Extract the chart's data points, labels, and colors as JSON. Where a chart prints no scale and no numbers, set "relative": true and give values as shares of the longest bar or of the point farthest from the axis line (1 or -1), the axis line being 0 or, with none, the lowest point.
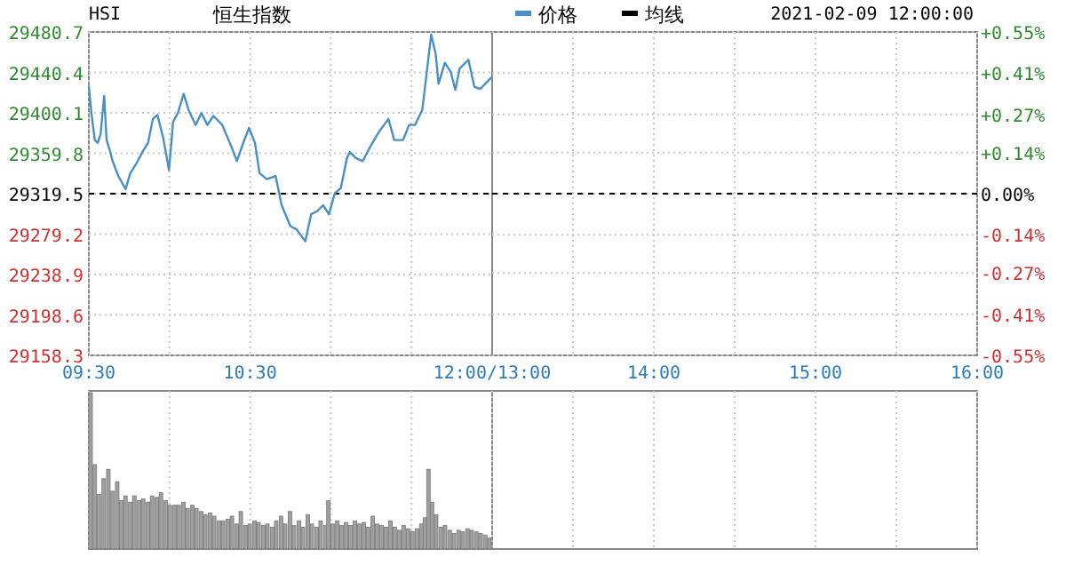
{
  "chart_data": [
    {
      "type": "line",
      "title": "恒生指数",
      "subtitle": "HSI",
      "legend": "top right",
      "grid": true,
      "x": [
        9.5,
        9.518,
        9.537,
        9.555,
        9.573,
        9.595,
        9.61,
        9.628,
        9.647,
        9.683,
        9.728,
        9.757,
        9.793,
        9.832,
        9.867,
        9.897,
        9.925,
        9.96,
        9.997,
        10.022,
        10.052,
        10.088,
        10.118,
        10.162,
        10.198,
        10.235,
        10.272,
        10.327,
        10.382,
        10.418,
        10.457,
        10.493,
        10.53,
        10.558,
        10.603,
        10.658,
        10.695,
        10.75,
        10.787,
        10.842,
        10.878,
        10.915,
        10.952,
        10.988,
        11.025,
        11.062,
        11.1,
        11.117,
        11.155,
        11.198,
        11.247,
        11.302,
        11.357,
        11.393,
        11.448,
        11.485,
        11.522,
        11.567,
        11.595,
        11.622,
        11.65,
        11.668,
        11.707,
        11.743,
        11.772,
        11.798,
        11.853,
        11.89,
        11.927,
        11.993
      ],
      "series": [
        {
          "name": "价格",
          "color": "#4a90c8",
          "values": [
            29426,
            29397,
            29373,
            29370,
            29379,
            29417,
            29373,
            29364,
            29352,
            29337,
            29324,
            29340,
            29349,
            29361,
            29370,
            29394,
            29398,
            29376,
            29343,
            29391,
            29400,
            29419,
            29403,
            29388,
            29400,
            29388,
            29397,
            29388,
            29367,
            29352,
            29370,
            29385,
            29370,
            29340,
            29334,
            29337,
            29308,
            29287,
            29284,
            29272,
            29299,
            29302,
            29308,
            29299,
            29320,
            29325,
            29355,
            29361,
            29355,
            29352,
            29367,
            29382,
            29394,
            29373,
            29373,
            29388,
            29388,
            29403,
            29441,
            29478,
            29459,
            29429,
            29450,
            29441,
            29423,
            29444,
            29453,
            29426,
            29424,
            29435
          ]
        },
        {
          "name": "均线",
          "color": "#000000",
          "values": [
            null,
            null,
            null,
            null,
            null,
            null,
            null,
            null,
            null,
            null,
            null,
            null,
            null,
            null,
            null,
            null,
            null,
            null,
            null,
            null,
            null,
            null,
            null,
            null,
            null,
            null,
            null,
            null,
            null,
            null,
            null,
            null,
            null,
            null,
            null,
            null,
            null,
            null,
            null,
            null,
            null,
            null,
            null,
            null,
            null,
            null,
            null,
            null,
            null,
            null,
            null,
            null,
            null,
            null,
            null,
            null,
            null,
            null,
            null,
            null,
            null,
            null,
            null,
            null,
            null,
            null,
            null,
            null,
            null,
            null
          ]
        }
      ],
      "xlim": [
        9.5,
        12
      ],
      "xticks": [
        {
          "value": 9.5,
          "label": "09:30"
        },
        {
          "value": 10,
          "label": null
        },
        {
          "value": 10.5,
          "label": "10:30"
        },
        {
          "value": 11,
          "label": null
        },
        {
          "value": 11.5,
          "label": null
        },
        {
          "value": 12,
          "label": "12:00/13:00"
        }
      ],
      "ylim": [
        29158.3,
        29480.7
      ],
      "yticks": [
        29158.3,
        29198.6,
        29238.9,
        29279.2,
        29319.5,
        29359.8,
        29400.1,
        29440.4,
        29480.7
      ],
      "ref_lines": [
        {
          "axis": "y",
          "value": 29319.5,
          "color": "#000000",
          "line_style": "dashed"
        }
      ]
    },
    {
      "type": "line",
      "annotations": [
        "2021-02-09 12:00:00"
      ],
      "grid": true,
      "xlim": [
        13,
        16
      ],
      "xticks": [
        {
          "value": 13.5,
          "label": null
        },
        {
          "value": 14,
          "label": "14:00"
        },
        {
          "value": 14.5,
          "label": null
        },
        {
          "value": 15,
          "label": "15:00"
        },
        {
          "value": 15.5,
          "label": null
        },
        {
          "value": 16,
          "label": "16:00"
        }
      ],
      "ylim": [
        29158.3,
        29480.7
      ],
      "y2lim": [
        -0.55,
        0.55
      ],
      "y2ticks": [
        {
          "value": -0.55,
          "label": "-0.55%"
        },
        {
          "value": -0.41,
          "label": "-0.41%"
        },
        {
          "value": -0.27,
          "label": "-0.27%"
        },
        {
          "value": -0.14,
          "label": "-0.14%"
        },
        {
          "value": 0,
          "label": "0.00%"
        },
        {
          "value": 0.14,
          "label": "+0.14%"
        },
        {
          "value": 0.27,
          "label": "+0.27%"
        },
        {
          "value": 0.41,
          "label": "+0.41%"
        },
        {
          "value": 0.55,
          "label": "+0.55%"
        }
      ],
      "ref_lines": [
        {
          "axis": "y",
          "value": 29319.5,
          "color": "#000000",
          "line_style": "dashed"
        }
      ]
    },
    {
      "type": "bar",
      "relative": true,
      "color": "#a0a0a0",
      "grid": "x",
      "tick_labels": false,
      "x": [
        9.511,
        9.537,
        9.562,
        9.592,
        9.621,
        9.647,
        9.676,
        9.702,
        9.727,
        9.757,
        9.782,
        9.812,
        9.837,
        9.867,
        9.892,
        9.922,
        9.947,
        9.977,
        10.002,
        10.032,
        10.057,
        10.087,
        10.112,
        10.142,
        10.167,
        10.197,
        10.222,
        10.252,
        10.277,
        10.307,
        10.332,
        10.362,
        10.387,
        10.417,
        10.442,
        10.472,
        10.497,
        10.527,
        10.552,
        10.582,
        10.607,
        10.637,
        10.662,
        10.692,
        10.717,
        10.747,
        10.772,
        10.802,
        10.827,
        10.857,
        10.882,
        10.912,
        10.937,
        10.967,
        10.985,
        11.011,
        11.04,
        11.066,
        11.095,
        11.121,
        11.15,
        11.176,
        11.205,
        11.231,
        11.26,
        11.286,
        11.315,
        11.341,
        11.37,
        11.396,
        11.425,
        11.451,
        11.48,
        11.506,
        11.535,
        11.561,
        11.583,
        11.605,
        11.627,
        11.653,
        11.682,
        11.708,
        11.737,
        11.763,
        11.792,
        11.818,
        11.847,
        11.873,
        11.902,
        11.928,
        11.957,
        11.983
      ],
      "values": [
        1.0,
        0.54,
        0.35,
        0.45,
        0.51,
        0.37,
        0.43,
        0.31,
        0.34,
        0.3,
        0.34,
        0.31,
        0.32,
        0.3,
        0.34,
        0.33,
        0.36,
        0.31,
        0.28,
        0.28,
        0.28,
        0.3,
        0.26,
        0.28,
        0.26,
        0.24,
        0.22,
        0.23,
        0.21,
        0.18,
        0.18,
        0.19,
        0.21,
        0.16,
        0.24,
        0.15,
        0.16,
        0.18,
        0.17,
        0.15,
        0.16,
        0.14,
        0.18,
        0.21,
        0.16,
        0.24,
        0.15,
        0.18,
        0.14,
        0.22,
        0.16,
        0.14,
        0.18,
        0.15,
        0.31,
        0.16,
        0.18,
        0.15,
        0.17,
        0.15,
        0.18,
        0.16,
        0.17,
        0.14,
        0.21,
        0.16,
        0.15,
        0.14,
        0.18,
        0.14,
        0.12,
        0.15,
        0.13,
        0.11,
        0.13,
        0.16,
        0.2,
        0.51,
        0.3,
        0.22,
        0.14,
        0.15,
        0.12,
        0.1,
        0.12,
        0.11,
        0.13,
        0.12,
        0.11,
        0.1,
        0.09,
        0.07
      ],
      "xlim": [
        9.5,
        12
      ],
      "xticks": [
        9.5,
        10,
        10.5,
        11,
        11.5,
        12
      ]
    }
  ]
}
